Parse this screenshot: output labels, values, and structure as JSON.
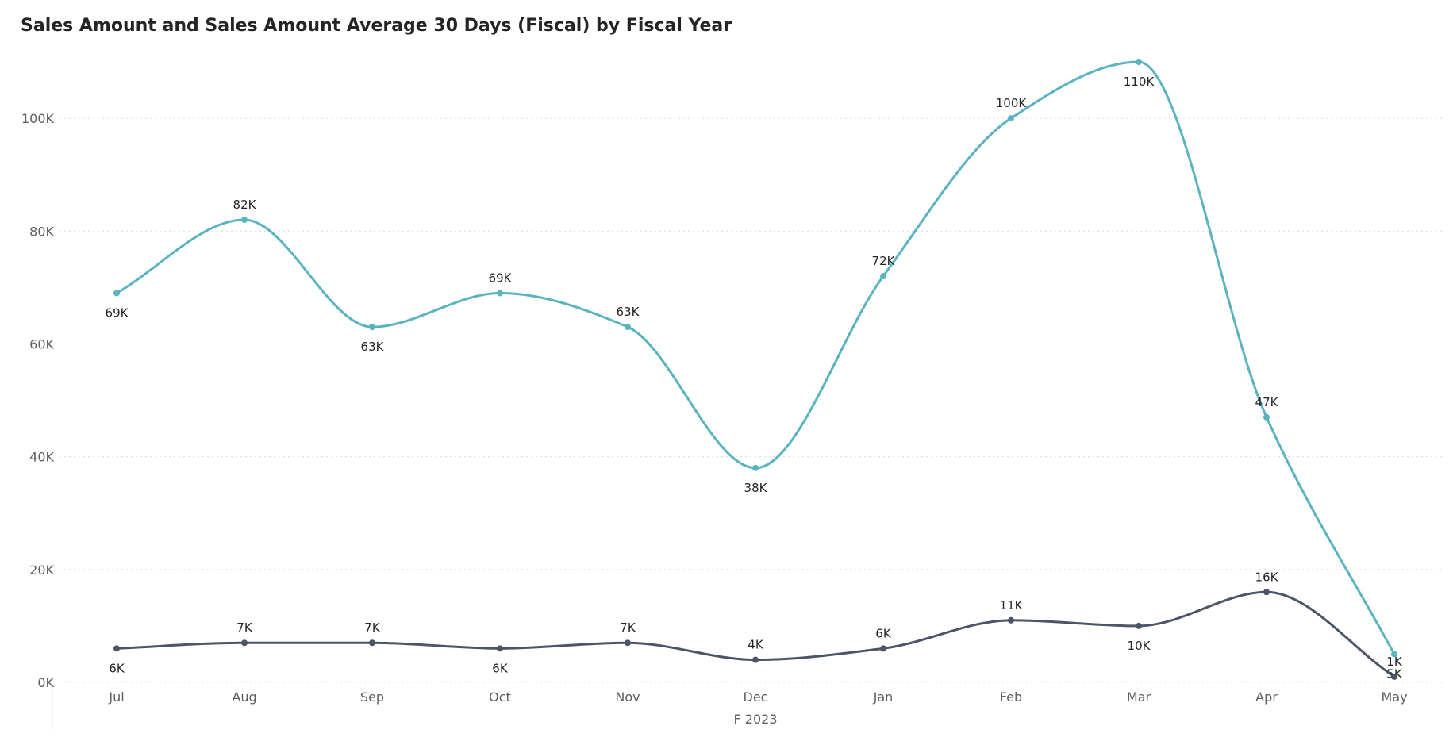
{
  "chart_data": {
    "type": "line",
    "title": "Sales Amount and Sales Amount Average 30 Days (Fiscal) by Fiscal Year",
    "xlabel": "F 2023",
    "ylabel": "",
    "categories": [
      "Jul",
      "Aug",
      "Sep",
      "Oct",
      "Nov",
      "Dec",
      "Jan",
      "Feb",
      "Mar",
      "Apr",
      "May"
    ],
    "ylim": [
      0,
      110000
    ],
    "yticks": [
      0,
      20000,
      40000,
      60000,
      80000,
      100000
    ],
    "ytick_labels": [
      "0K",
      "20K",
      "40K",
      "60K",
      "80K",
      "100K"
    ],
    "grid": true,
    "series": [
      {
        "color": "#5AB4C0",
        "values": [
          69000,
          82000,
          63000,
          69000,
          63000,
          38000,
          72000,
          100000,
          110000,
          47000,
          5000
        ],
        "labels": [
          "69K",
          "82K",
          "63K",
          "69K",
          "63K",
          "38K",
          "72K",
          "100K",
          "110K",
          "47K",
          "5K"
        ],
        "label_pos": [
          "below",
          "above",
          "below",
          "above",
          "above",
          "below",
          "above",
          "above",
          "below",
          "above",
          "below"
        ]
      },
      {
        "color": "#4A5568",
        "values": [
          6000,
          7000,
          7000,
          6000,
          7000,
          4000,
          6000,
          11000,
          10000,
          16000,
          1000
        ],
        "labels": [
          "6K",
          "7K",
          "7K",
          "6K",
          "7K",
          "4K",
          "6K",
          "11K",
          "10K",
          "16K",
          "1K"
        ],
        "label_pos": [
          "below",
          "above",
          "above",
          "below",
          "above",
          "above",
          "above",
          "above",
          "below",
          "above",
          "above"
        ]
      }
    ]
  }
}
